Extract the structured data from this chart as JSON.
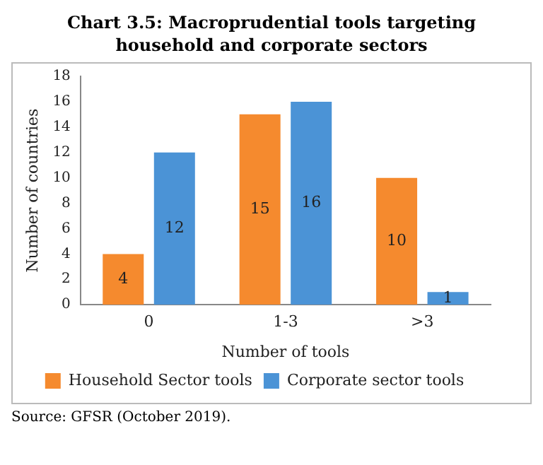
{
  "chart_data": {
    "type": "bar",
    "title": "Chart 3.5: Macroprudential tools targeting household and corporate sectors",
    "xlabel": "Number of tools",
    "ylabel": "Number of countries",
    "categories": [
      "0",
      "1-3",
      ">3"
    ],
    "series": [
      {
        "name": "Household Sector tools",
        "color": "#f58a2e",
        "values": [
          4,
          15,
          10
        ]
      },
      {
        "name": "Corporate sector tools",
        "color": "#4b93d6",
        "values": [
          12,
          16,
          1
        ]
      }
    ],
    "ylim": [
      0,
      18
    ],
    "yticks": [
      0,
      2,
      4,
      6,
      8,
      10,
      12,
      14,
      16,
      18
    ],
    "grid": false,
    "legend": "bottom",
    "data_labels": true,
    "annotations": [
      "Source: GFSR (October 2019)."
    ]
  }
}
